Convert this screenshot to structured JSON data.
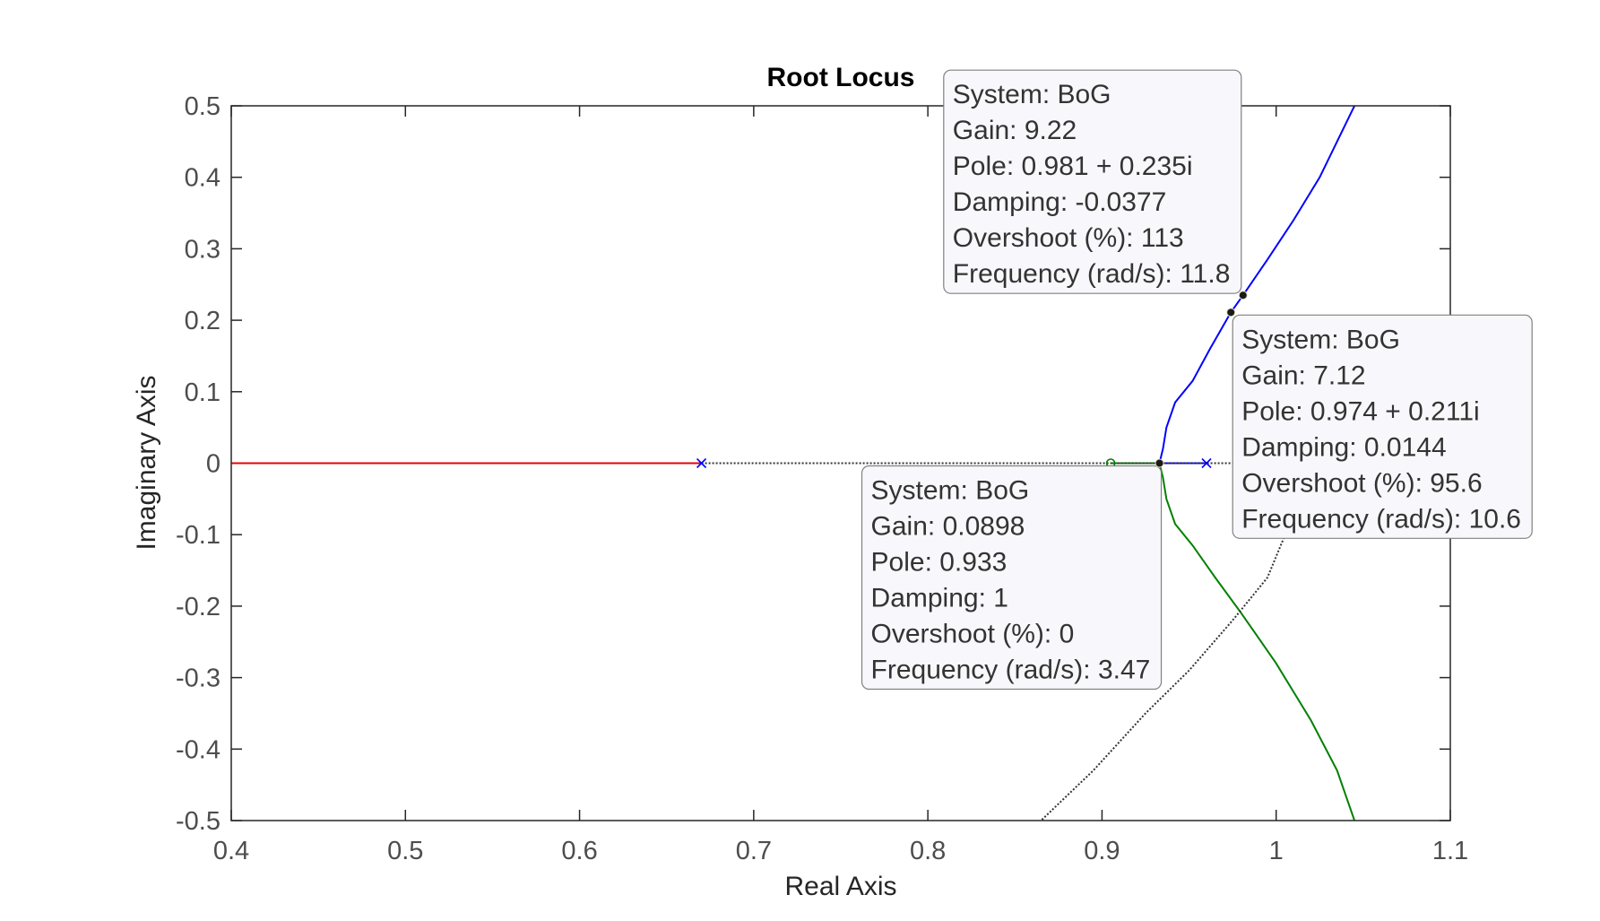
{
  "chart_data": {
    "type": "line",
    "title": "Root Locus",
    "xlabel": "Real Axis",
    "ylabel": "Imaginary Axis",
    "xlim": [
      0.4,
      1.1
    ],
    "ylim": [
      -0.5,
      0.5
    ],
    "xticks": [
      0.4,
      0.5,
      0.6,
      0.7,
      0.8,
      0.9,
      1.0,
      1.1
    ],
    "xtick_labels": [
      "0.4",
      "0.5",
      "0.6",
      "0.7",
      "0.8",
      "0.9",
      "1",
      "1.1"
    ],
    "yticks": [
      0.5,
      0.4,
      0.3,
      0.2,
      0.1,
      0,
      -0.1,
      -0.2,
      -0.3,
      -0.4,
      -0.5
    ],
    "ytick_labels": [
      "0.5",
      "0.4",
      "0.3",
      "0.2",
      "0.1",
      "0",
      "-0.1",
      "-0.2",
      "-0.3",
      "-0.4",
      "-0.5"
    ],
    "grid": false,
    "series": [
      {
        "name": "red-branch",
        "color": "#e8000b",
        "x": [
          0.4,
          0.67
        ],
        "y": [
          0,
          0
        ]
      },
      {
        "name": "blue-branch",
        "color": "#0000ff",
        "x": [
          0.96,
          0.933,
          0.935,
          0.937,
          0.942,
          0.952,
          0.962,
          0.974,
          0.981,
          0.995,
          1.01,
          1.025,
          1.035,
          1.045
        ],
        "y": [
          0,
          0,
          0.02,
          0.05,
          0.085,
          0.115,
          0.16,
          0.211,
          0.235,
          0.285,
          0.34,
          0.4,
          0.45,
          0.5
        ]
      },
      {
        "name": "green-branch",
        "color": "#008000",
        "x": [
          0.905,
          0.933,
          0.935,
          0.937,
          0.942,
          0.952,
          0.965,
          0.98,
          1.0,
          1.02,
          1.035,
          1.045
        ],
        "y": [
          0,
          0,
          -0.02,
          -0.05,
          -0.085,
          -0.115,
          -0.16,
          -0.21,
          -0.28,
          -0.36,
          -0.43,
          -0.5
        ]
      },
      {
        "name": "black-dotted-branch",
        "color": "#333333",
        "dotted": true,
        "x": [
          0.67,
          0.905,
          0.96,
          1.0,
          1.012,
          0.995,
          0.975,
          0.95,
          0.925,
          0.895,
          0.865
        ],
        "y": [
          0,
          0,
          0,
          0,
          -0.06,
          -0.16,
          -0.22,
          -0.29,
          -0.35,
          -0.43,
          -0.5
        ]
      }
    ],
    "poles": [
      {
        "x": 0.67,
        "y": 0,
        "color": "#0000ff"
      },
      {
        "x": 0.96,
        "y": 0,
        "color": "#0000ff"
      }
    ],
    "zeros": [
      {
        "x": 0.905,
        "y": 0,
        "color": "#008000"
      }
    ],
    "datatips": [
      {
        "id": "tip1",
        "point": {
          "x": 0.933,
          "y": 0
        },
        "placement": "bottom-left",
        "lines": [
          "System: BoG",
          "Gain: 0.0898",
          "Pole: 0.933",
          "Damping: 1",
          "Overshoot (%): 0",
          "Frequency (rad/s): 3.47"
        ]
      },
      {
        "id": "tip2",
        "point": {
          "x": 0.981,
          "y": 0.235
        },
        "placement": "top-left",
        "lines": [
          "System: BoG",
          "Gain: 9.22",
          "Pole: 0.981 + 0.235i",
          "Damping: -0.0377",
          "Overshoot (%): 113",
          "Frequency (rad/s): 11.8"
        ]
      },
      {
        "id": "tip3",
        "point": {
          "x": 0.974,
          "y": 0.211
        },
        "placement": "bottom-right",
        "lines": [
          "System: BoG",
          "Gain: 7.12",
          "Pole: 0.974 + 0.211i",
          "Damping: 0.0144",
          "Overshoot (%): 95.6",
          "Frequency (rad/s): 10.6"
        ]
      }
    ]
  }
}
